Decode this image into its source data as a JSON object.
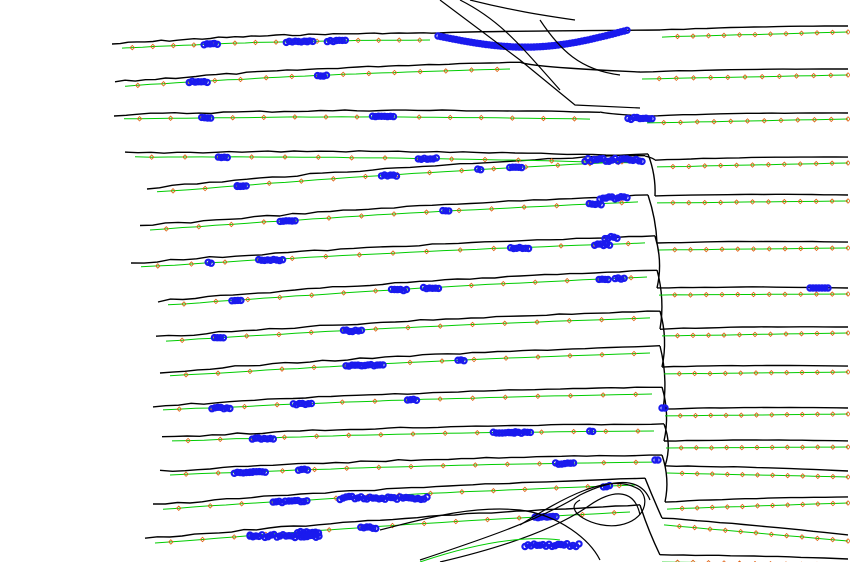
{
  "figure": {
    "background_color": "#ffffff",
    "boundary_color": "#000000",
    "track_color": "#00cc00",
    "marker_color": "#e06010",
    "cluster_color": "#1a1aee",
    "layer_count": 15
  }
}
